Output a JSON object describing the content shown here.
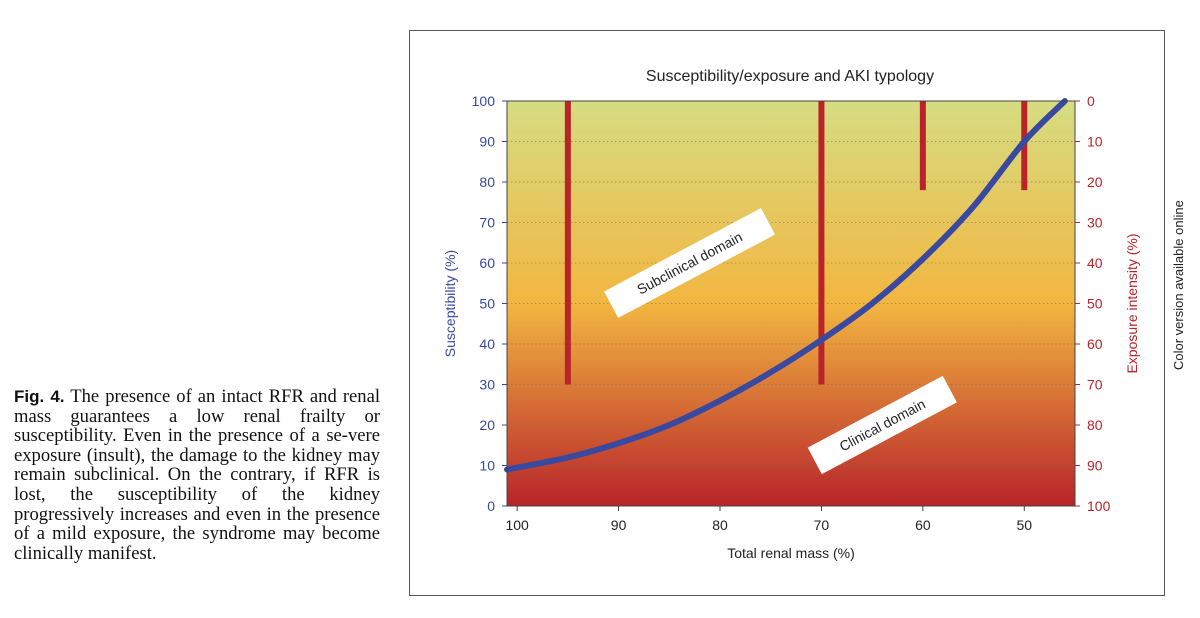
{
  "caption": {
    "label": "Fig. 4.",
    "text": "The presence of an intact RFR and renal mass guarantees a low renal frailty or susceptibility. Even in the presence of a se-vere exposure (insult), the damage to the kidney may remain subclinical. On the contrary, if RFR is lost, the susceptibility of the kidney progressively increases and even in the presence of a mild exposure, the syndrome may become clinically manifest."
  },
  "side_note": "Color version available online",
  "chart_data": {
    "type": "line",
    "title": "Susceptibility/exposure and AKI typology",
    "xlabel": "Total renal mass (%)",
    "ylabel_left": "Susceptibility (%)",
    "ylabel_right": "Exposure intensity (%)",
    "xlim": [
      101,
      45
    ],
    "ylim_left": [
      0,
      100
    ],
    "ylim_right": [
      100,
      0
    ],
    "x_ticks": [
      "100",
      "90",
      "80",
      "70",
      "60",
      "50"
    ],
    "x_tick_values": [
      100,
      90,
      80,
      70,
      60,
      50
    ],
    "y_left_ticks": [
      "0",
      "10",
      "20",
      "30",
      "40",
      "50",
      "60",
      "70",
      "80",
      "90",
      "100"
    ],
    "y_right_ticks": [
      "100",
      "90",
      "80",
      "70",
      "60",
      "50",
      "40",
      "30",
      "20",
      "10",
      "0"
    ],
    "grid": "horizontal dotted",
    "background": "vertical gradient from yellow-green (top) to red (bottom)",
    "series": [
      {
        "color": "#3a49a0",
        "x": [
          101,
          95,
          90,
          85,
          80,
          75,
          70,
          65,
          60,
          55,
          50,
          46
        ],
        "y": [
          9,
          12,
          15.5,
          20,
          26,
          33,
          41,
          50,
          61,
          74,
          90,
          100
        ]
      }
    ],
    "exposure_bars": [
      {
        "x": 95,
        "exposure_from": 0,
        "exposure_to": 70
      },
      {
        "x": 70,
        "exposure_from": 0,
        "exposure_to": 70
      },
      {
        "x": 60,
        "exposure_from": 0,
        "exposure_to": 22
      },
      {
        "x": 50,
        "exposure_from": 0,
        "exposure_to": 22
      }
    ],
    "annotations": [
      {
        "text": "Subclinical domain",
        "x": 83,
        "y": 60
      },
      {
        "text": "Clinical domain",
        "x": 64,
        "y": 20
      }
    ],
    "colors": {
      "curve": "#3a49a0",
      "bars": "#b8242a",
      "left_axis": "#3a49a0",
      "right_axis": "#b8242a",
      "bg_top": "#d6dc82",
      "bg_mid": "#f2b640",
      "bg_bottom": "#b8242a"
    }
  }
}
